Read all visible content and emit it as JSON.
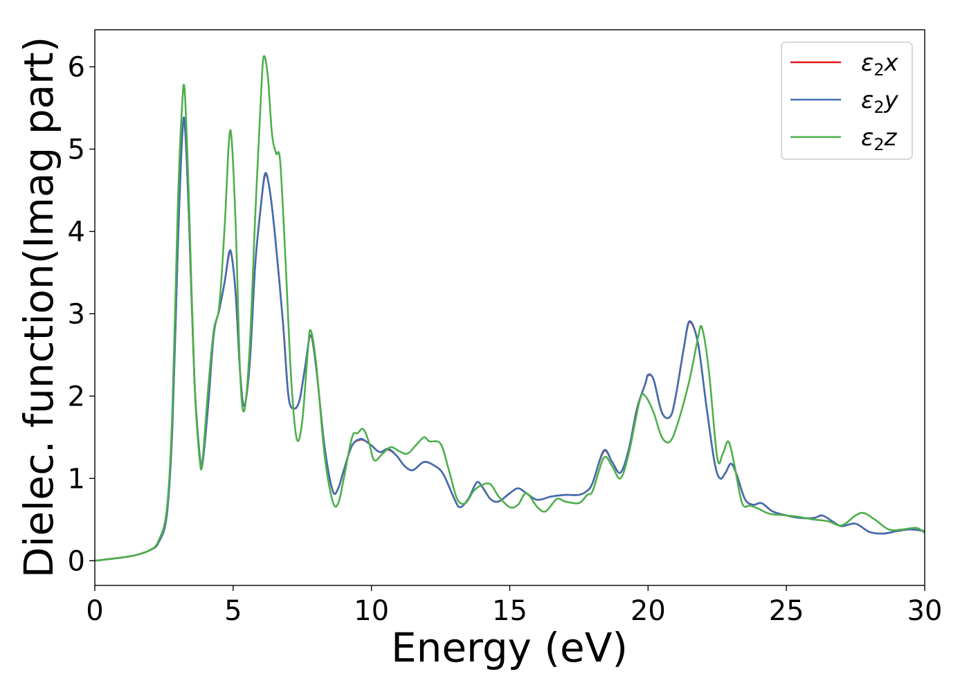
{
  "chart_data": {
    "type": "line",
    "xlabel": "Energy (eV)",
    "ylabel": "Dielec. function(Imag part)",
    "xlim": [
      0,
      30
    ],
    "ylim": [
      -0.3,
      6.45
    ],
    "xticks": [
      0,
      5,
      10,
      15,
      20,
      25,
      30
    ],
    "yticks": [
      0,
      1,
      2,
      3,
      4,
      5,
      6
    ],
    "grid": false,
    "legend_position": "top-right",
    "series": [
      {
        "name": "ε2x",
        "legend_base": "ε",
        "legend_sub": "2",
        "legend_var": "x",
        "color": "#e41a1c",
        "x": [
          0,
          1,
          1.5,
          2,
          2.3,
          2.6,
          2.8,
          3.0,
          3.15,
          3.25,
          3.4,
          3.6,
          3.8,
          3.9,
          4.1,
          4.3,
          4.5,
          4.7,
          4.85,
          4.95,
          5.1,
          5.25,
          5.4,
          5.6,
          5.8,
          6.0,
          6.15,
          6.3,
          6.5,
          6.8,
          7.0,
          7.2,
          7.4,
          7.6,
          7.8,
          8.0,
          8.3,
          8.6,
          8.8,
          9.0,
          9.3,
          9.6,
          9.8,
          10.0,
          10.3,
          10.6,
          10.9,
          11.2,
          11.5,
          11.9,
          12.3,
          12.6,
          13.0,
          13.2,
          13.5,
          13.8,
          14.0,
          14.3,
          14.6,
          15.0,
          15.3,
          15.6,
          16.0,
          16.5,
          17.0,
          17.5,
          17.8,
          18.0,
          18.4,
          18.7,
          19.0,
          19.3,
          19.6,
          19.9,
          20.0,
          20.2,
          20.5,
          20.8,
          21.0,
          21.3,
          21.5,
          21.8,
          22.1,
          22.4,
          22.6,
          22.8,
          23.0,
          23.2,
          23.5,
          23.8,
          24.1,
          24.5,
          25.0,
          25.5,
          26.0,
          26.3,
          26.7,
          27.0,
          27.5,
          28.0,
          28.5,
          29.0,
          29.5,
          30.0
        ],
        "values": [
          0,
          0.04,
          0.07,
          0.13,
          0.22,
          0.55,
          1.6,
          3.8,
          5.1,
          5.3,
          4.2,
          2.2,
          1.25,
          1.2,
          1.9,
          2.75,
          3.05,
          3.4,
          3.72,
          3.7,
          3.2,
          2.3,
          1.88,
          2.4,
          3.6,
          4.3,
          4.68,
          4.55,
          4.0,
          2.9,
          2.0,
          1.85,
          1.95,
          2.35,
          2.73,
          2.35,
          1.4,
          0.85,
          0.88,
          1.1,
          1.4,
          1.47,
          1.45,
          1.4,
          1.32,
          1.35,
          1.28,
          1.15,
          1.1,
          1.2,
          1.15,
          1.05,
          0.75,
          0.65,
          0.75,
          0.95,
          0.9,
          0.75,
          0.72,
          0.82,
          0.88,
          0.82,
          0.74,
          0.78,
          0.8,
          0.8,
          0.85,
          0.95,
          1.33,
          1.2,
          1.07,
          1.35,
          1.85,
          2.15,
          2.25,
          2.2,
          1.8,
          1.75,
          2.0,
          2.6,
          2.9,
          2.65,
          1.9,
          1.2,
          1.0,
          1.07,
          1.18,
          1.05,
          0.75,
          0.68,
          0.7,
          0.6,
          0.55,
          0.52,
          0.52,
          0.55,
          0.47,
          0.42,
          0.45,
          0.35,
          0.33,
          0.36,
          0.38,
          0.36
        ]
      },
      {
        "name": "ε2y",
        "legend_base": "ε",
        "legend_sub": "2",
        "legend_var": "y",
        "color": "#3f6fb1",
        "x": [
          0,
          1,
          1.5,
          2,
          2.3,
          2.6,
          2.8,
          3.0,
          3.15,
          3.25,
          3.4,
          3.6,
          3.8,
          3.9,
          4.1,
          4.3,
          4.5,
          4.7,
          4.85,
          4.95,
          5.1,
          5.25,
          5.4,
          5.6,
          5.8,
          6.0,
          6.15,
          6.3,
          6.5,
          6.8,
          7.0,
          7.2,
          7.4,
          7.6,
          7.8,
          8.0,
          8.3,
          8.6,
          8.8,
          9.0,
          9.3,
          9.6,
          9.8,
          10.0,
          10.3,
          10.6,
          10.9,
          11.2,
          11.5,
          11.9,
          12.3,
          12.6,
          13.0,
          13.2,
          13.5,
          13.8,
          14.0,
          14.3,
          14.6,
          15.0,
          15.3,
          15.6,
          16.0,
          16.5,
          17.0,
          17.5,
          17.8,
          18.0,
          18.4,
          18.7,
          19.0,
          19.3,
          19.6,
          19.9,
          20.0,
          20.2,
          20.5,
          20.8,
          21.0,
          21.3,
          21.5,
          21.8,
          22.1,
          22.4,
          22.6,
          22.8,
          23.0,
          23.2,
          23.5,
          23.8,
          24.1,
          24.5,
          25.0,
          25.5,
          26.0,
          26.3,
          26.7,
          27.0,
          27.5,
          28.0,
          28.5,
          29.0,
          29.5,
          30.0
        ],
        "values": [
          0,
          0.04,
          0.07,
          0.13,
          0.22,
          0.55,
          1.6,
          3.8,
          5.1,
          5.32,
          4.2,
          2.2,
          1.25,
          1.2,
          1.9,
          2.75,
          3.05,
          3.4,
          3.74,
          3.7,
          3.2,
          2.3,
          1.88,
          2.4,
          3.6,
          4.3,
          4.7,
          4.55,
          4.0,
          2.9,
          2.0,
          1.85,
          1.95,
          2.35,
          2.74,
          2.35,
          1.4,
          0.85,
          0.88,
          1.1,
          1.4,
          1.48,
          1.45,
          1.4,
          1.32,
          1.36,
          1.28,
          1.15,
          1.1,
          1.2,
          1.15,
          1.05,
          0.75,
          0.65,
          0.75,
          0.95,
          0.9,
          0.75,
          0.72,
          0.82,
          0.88,
          0.82,
          0.74,
          0.78,
          0.8,
          0.8,
          0.85,
          0.95,
          1.34,
          1.2,
          1.07,
          1.35,
          1.85,
          2.15,
          2.26,
          2.2,
          1.8,
          1.75,
          2.0,
          2.6,
          2.91,
          2.65,
          1.9,
          1.2,
          1.0,
          1.07,
          1.18,
          1.05,
          0.75,
          0.68,
          0.7,
          0.6,
          0.55,
          0.52,
          0.52,
          0.55,
          0.47,
          0.42,
          0.45,
          0.35,
          0.33,
          0.36,
          0.38,
          0.36
        ]
      },
      {
        "name": "ε2z",
        "legend_base": "ε",
        "legend_sub": "2",
        "legend_var": "z",
        "color": "#4daf4a",
        "x": [
          0,
          1,
          1.5,
          2,
          2.3,
          2.6,
          2.8,
          3.0,
          3.15,
          3.25,
          3.4,
          3.6,
          3.8,
          3.9,
          4.1,
          4.3,
          4.5,
          4.7,
          4.85,
          4.95,
          5.1,
          5.25,
          5.4,
          5.6,
          5.8,
          6.0,
          6.1,
          6.25,
          6.4,
          6.55,
          6.7,
          6.9,
          7.1,
          7.3,
          7.5,
          7.7,
          7.8,
          8.0,
          8.3,
          8.6,
          8.8,
          9.0,
          9.3,
          9.5,
          9.7,
          9.9,
          10.1,
          10.4,
          10.7,
          11.0,
          11.3,
          11.6,
          11.9,
          12.1,
          12.5,
          12.8,
          13.1,
          13.4,
          13.7,
          14.0,
          14.3,
          14.6,
          15.0,
          15.3,
          15.6,
          16.0,
          16.3,
          16.7,
          17.0,
          17.5,
          17.8,
          18.0,
          18.4,
          18.7,
          19.0,
          19.3,
          19.7,
          19.9,
          20.2,
          20.5,
          20.8,
          21.1,
          21.5,
          21.8,
          21.95,
          22.2,
          22.5,
          22.7,
          22.9,
          23.1,
          23.4,
          23.7,
          24.0,
          24.4,
          25.0,
          25.5,
          26.0,
          26.5,
          27.0,
          27.5,
          27.8,
          28.2,
          28.7,
          29.2,
          29.7,
          30.0
        ],
        "values": [
          0,
          0.04,
          0.07,
          0.13,
          0.24,
          0.62,
          1.8,
          4.3,
          5.5,
          5.7,
          4.4,
          2.2,
          1.2,
          1.25,
          2.1,
          2.8,
          3.1,
          4.1,
          5.1,
          5.1,
          4.0,
          2.3,
          1.82,
          2.6,
          4.2,
          5.6,
          6.12,
          5.9,
          5.2,
          4.95,
          4.85,
          3.6,
          2.2,
          1.48,
          1.7,
          2.55,
          2.8,
          2.4,
          1.3,
          0.72,
          0.7,
          1.0,
          1.5,
          1.55,
          1.6,
          1.45,
          1.22,
          1.3,
          1.38,
          1.33,
          1.3,
          1.4,
          1.5,
          1.45,
          1.42,
          1.1,
          0.75,
          0.7,
          0.85,
          0.92,
          0.93,
          0.78,
          0.65,
          0.68,
          0.82,
          0.65,
          0.6,
          0.75,
          0.72,
          0.7,
          0.8,
          0.85,
          1.25,
          1.15,
          1.0,
          1.3,
          1.95,
          2.0,
          1.8,
          1.5,
          1.45,
          1.7,
          2.2,
          2.7,
          2.83,
          2.3,
          1.25,
          1.3,
          1.45,
          1.2,
          0.7,
          0.67,
          0.63,
          0.57,
          0.55,
          0.53,
          0.5,
          0.48,
          0.43,
          0.55,
          0.58,
          0.5,
          0.38,
          0.38,
          0.4,
          0.34
        ]
      }
    ]
  }
}
